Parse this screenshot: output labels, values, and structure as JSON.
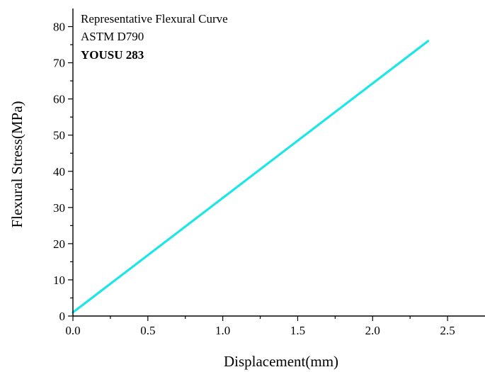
{
  "chart_data": {
    "type": "line",
    "title": "",
    "annotations": [
      "Representative Flexural Curve",
      "ASTM D790",
      "YOUSU 283"
    ],
    "xlabel": "Displacement(mm)",
    "ylabel": "Flexural Stress(MPa)",
    "xlim": [
      0,
      2.75
    ],
    "ylim": [
      0,
      85
    ],
    "xticks": [
      0.0,
      0.5,
      1.0,
      1.5,
      2.0,
      2.5
    ],
    "xtick_labels": [
      "0.0",
      "0.5",
      "1.0",
      "1.5",
      "2.0",
      "2.5"
    ],
    "yticks": [
      0,
      10,
      20,
      30,
      40,
      50,
      60,
      70,
      80
    ],
    "ytick_labels": [
      "0",
      "10",
      "20",
      "30",
      "40",
      "50",
      "60",
      "70",
      "80"
    ],
    "grid": false,
    "legend": "none",
    "series": [
      {
        "color": "#1ee6e6",
        "x": [
          0.0,
          2.37
        ],
        "y": [
          1.0,
          76.0
        ]
      }
    ]
  }
}
